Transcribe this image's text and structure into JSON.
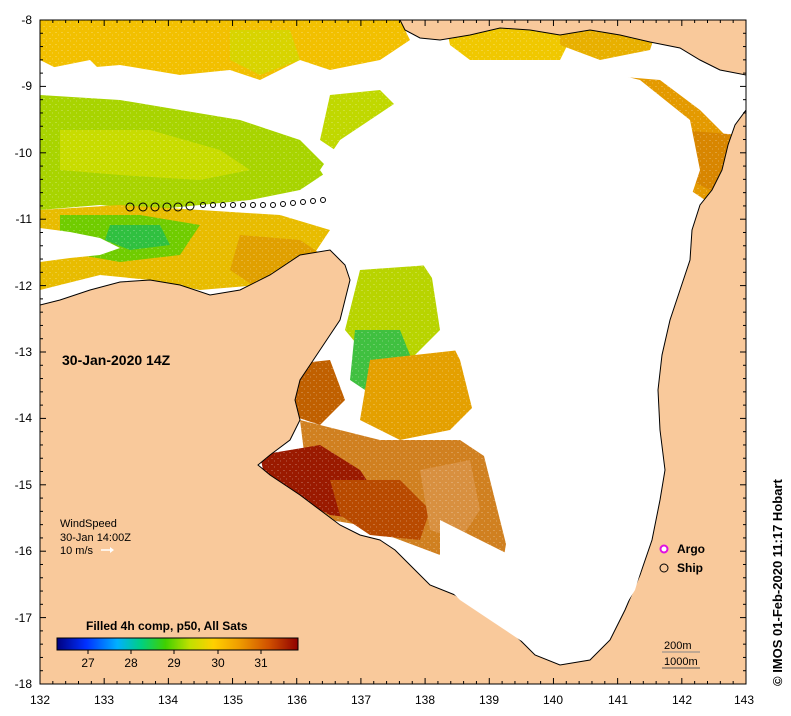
{
  "map": {
    "date_label": "30-Jan-2020 14Z",
    "product_label": "Filled 4h comp, p50, All Sats",
    "credit": "© IMOS 01-Feb-2020 11:17 Hobart",
    "x_ticks": [
      "132",
      "133",
      "134",
      "135",
      "136",
      "137",
      "138",
      "139",
      "140",
      "141",
      "142",
      "143"
    ],
    "y_ticks": [
      "-8",
      "-9",
      "-10",
      "-11",
      "-12",
      "-13",
      "-14",
      "-15",
      "-16",
      "-17",
      "-18"
    ],
    "colorbar_ticks": [
      "27",
      "28",
      "29",
      "30",
      "31"
    ],
    "wind": {
      "title": "WindSpeed",
      "time": "30-Jan 14:00Z",
      "scale": "10 m/s"
    },
    "legend": {
      "argo": "Argo",
      "ship": "Ship"
    },
    "depth_contours": {
      "shallow": "200m",
      "deep": "1000m"
    },
    "colors": {
      "land": "#f9c99b",
      "sea_nodata": "#ffffff",
      "argo": "#e010e0"
    }
  }
}
